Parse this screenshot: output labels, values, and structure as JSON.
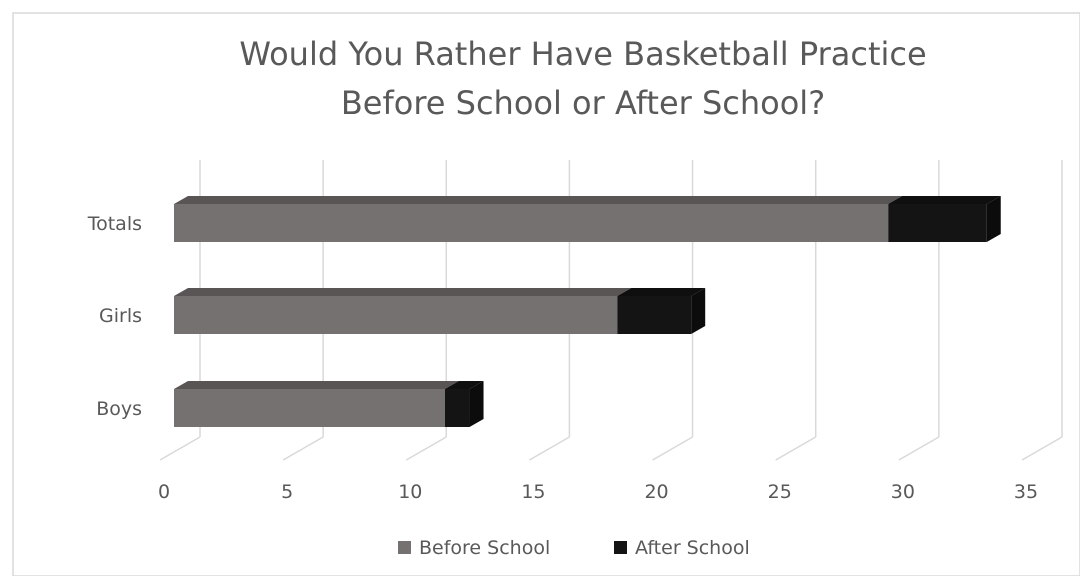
{
  "chart_data": {
    "type": "bar",
    "orientation": "horizontal",
    "stacked": true,
    "title_lines": [
      "Would You Rather Have Basketball Practice",
      "Before School or After School?"
    ],
    "categories": [
      "Boys",
      "Girls",
      "Totals"
    ],
    "series": [
      {
        "name": "Before School",
        "values": [
          11,
          18,
          29
        ],
        "color": "#767171"
      },
      {
        "name": "After School",
        "values": [
          1,
          3,
          4
        ],
        "color": "#141414"
      }
    ],
    "xlim": [
      0,
      35
    ],
    "xticks": [
      "0",
      "5",
      "10",
      "15",
      "20",
      "25",
      "30",
      "35"
    ],
    "grid": "vertical",
    "legend_position": "bottom"
  }
}
